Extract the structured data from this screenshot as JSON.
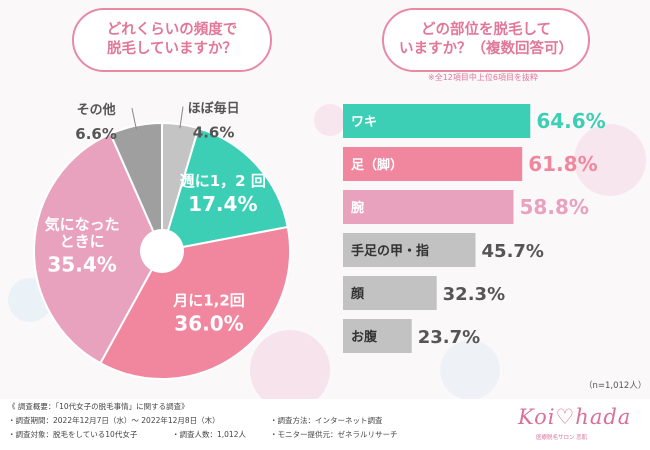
{
  "left_question": {
    "line1": "どれくらいの頻度で",
    "line2": "脱毛していますか？"
  },
  "right_question": {
    "line1": "どの部位を脱毛して",
    "line2": "いますか？（複数回答可）"
  },
  "note": "※全12項目中上位6項目を抜粋",
  "n_count": "（n=1,012人）",
  "colors": {
    "teal": "#3ccfb5",
    "pink": "#f0879f",
    "light_pink": "#e9a2be",
    "gray": "#b3b3b3",
    "accent": "#e27798",
    "text": "#555555"
  },
  "chart_data": [
    {
      "type": "pie",
      "slices": [
        {
          "label": "ほぼ毎日",
          "value": 4.6,
          "value_text": "4.6%",
          "color": "#c4c4c4"
        },
        {
          "label": "週に1，2 回",
          "value": 17.4,
          "value_text": "17.4%",
          "color": "#3ccfb5"
        },
        {
          "label": "月に1,2回",
          "value": 36.0,
          "value_text": "36.0%",
          "color": "#f0879f"
        },
        {
          "label": "気になったときに",
          "label_lines": [
            "気になった",
            "ときに"
          ],
          "value": 35.4,
          "value_text": "35.4%",
          "color": "#e9a2be"
        },
        {
          "label": "その他",
          "value": 6.6,
          "value_text": "6.6%",
          "color": "#9f9f9f"
        }
      ]
    },
    {
      "type": "bar",
      "orientation": "horizontal",
      "categories": [
        "ワキ",
        "足（脚）",
        "腕",
        "手足の甲・指",
        "顔",
        "お腹"
      ],
      "values": [
        64.6,
        61.8,
        58.8,
        45.7,
        32.3,
        23.7
      ],
      "value_labels": [
        "64.6%",
        "61.8%",
        "58.8%",
        "45.7%",
        "32.3%",
        "23.7%"
      ],
      "colors": [
        "#3ccfb5",
        "#f0879f",
        "#e9a2be",
        "#c2c2c2",
        "#c2c2c2",
        "#c2c2c2"
      ],
      "label_colors": [
        "#3ccfb5",
        "#f0879f",
        "#e9a2be",
        "#555555",
        "#555555",
        "#555555"
      ]
    }
  ],
  "survey": {
    "title": "《 調査概要：「10代女子の脱毛事情」に関する調査》",
    "period": "・調査期間：2022年12月7日（水）～ 2022年12月8日（木）",
    "target": "・調査対象：脱毛をしている10代女子",
    "people": "・調査人数：1,012人",
    "method": "・調査方法：インターネット調査",
    "provider": "・モニター提供元：ゼネラルリサーチ"
  },
  "logo": {
    "text": "Koi♡hada",
    "sub": "医療脱毛サロン 恋肌"
  }
}
